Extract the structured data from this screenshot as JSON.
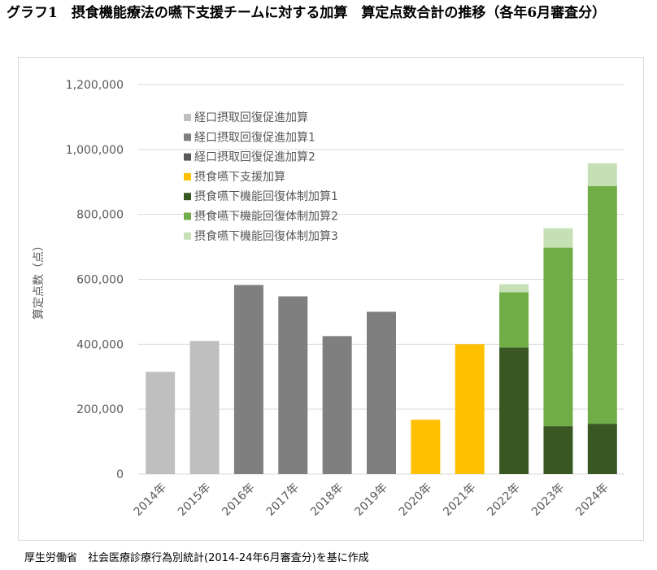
{
  "title": "グラフ1　摂食機能療法の嚥下支援チームに対する加算　算定点数合計の推移（各年6月審査分）",
  "footer": "厚生労働省　社会医療診療行為別統計(2014-24年6月審査分)を基に作成",
  "chart_data": {
    "type": "bar",
    "stacked": true,
    "ylabel": "算定点数（点）",
    "ylim": [
      0,
      1200000
    ],
    "yticks": [
      0,
      200000,
      400000,
      600000,
      800000,
      1000000,
      1200000
    ],
    "ytick_labels": [
      "0",
      "200,000",
      "400,000",
      "600,000",
      "800,000",
      "1,000,000",
      "1,200,000"
    ],
    "grid": true,
    "legend_position": "top-left",
    "categories": [
      "2014年",
      "2015年",
      "2016年",
      "2017年",
      "2018年",
      "2019年",
      "2020年",
      "2021年",
      "2022年",
      "2023年",
      "2024年"
    ],
    "series": [
      {
        "name": "経口摂取回復促進加算",
        "color": "#bfbfbf",
        "values": [
          315000,
          410000,
          0,
          0,
          0,
          0,
          0,
          0,
          0,
          0,
          0
        ]
      },
      {
        "name": "経口摂取回復促進加算1",
        "color": "#7f7f7f",
        "values": [
          0,
          0,
          582500,
          547500,
          425000,
          500000,
          0,
          0,
          0,
          0,
          0
        ]
      },
      {
        "name": "経口摂取回復促進加算2",
        "color": "#595959",
        "values": [
          0,
          0,
          0,
          0,
          0,
          0,
          0,
          0,
          0,
          0,
          0
        ]
      },
      {
        "name": "摂食嚥下支援加算",
        "color": "#ffc000",
        "values": [
          0,
          0,
          0,
          0,
          0,
          0,
          167500,
          400000,
          0,
          0,
          0
        ]
      },
      {
        "name": "摂食嚥下機能回復体制加算1",
        "color": "#385723",
        "values": [
          0,
          0,
          0,
          0,
          0,
          0,
          0,
          0,
          390000,
          147500,
          155000
        ]
      },
      {
        "name": "摂食嚥下機能回復体制加算2",
        "color": "#70ad47",
        "values": [
          0,
          0,
          0,
          0,
          0,
          0,
          0,
          0,
          170000,
          550000,
          732500
        ]
      },
      {
        "name": "摂食嚥下機能回復体制加算3",
        "color": "#c5e0b4",
        "values": [
          0,
          0,
          0,
          0,
          0,
          0,
          0,
          0,
          25000,
          60000,
          70000
        ]
      }
    ]
  }
}
